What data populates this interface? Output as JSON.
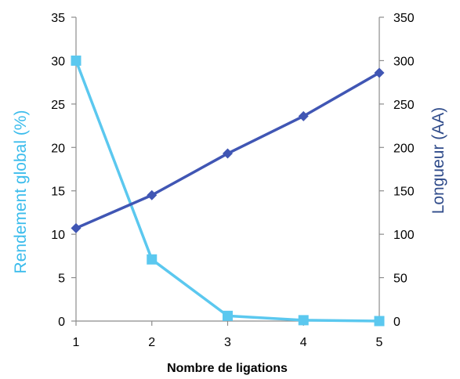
{
  "chart_data": {
    "type": "line",
    "x": [
      1,
      2,
      3,
      4,
      5
    ],
    "xlabel": "Nombre de ligations",
    "ylabel_left": "Rendement global (%)",
    "ylabel_right": "Longueur (AA)",
    "ylim_left": [
      0,
      35
    ],
    "ylim_right": [
      0,
      350
    ],
    "yticks_left": [
      0,
      5,
      10,
      15,
      20,
      25,
      30,
      35
    ],
    "yticks_right": [
      0,
      50,
      100,
      150,
      200,
      250,
      300,
      350
    ],
    "xticks": [
      1,
      2,
      3,
      4,
      5
    ],
    "grid": false,
    "series": [
      {
        "axis": "left",
        "marker": "square",
        "color": "#5bc8ef",
        "values": [
          30,
          7.1,
          0.6,
          0.1,
          0.0
        ]
      },
      {
        "axis": "right",
        "marker": "diamond",
        "color": "#4056b4",
        "values": [
          107,
          145,
          193,
          236,
          286
        ]
      }
    ],
    "colors": {
      "left_title": "#3bbcec",
      "right_title": "#2f4b8a",
      "axis": "#8c8c8c"
    }
  }
}
